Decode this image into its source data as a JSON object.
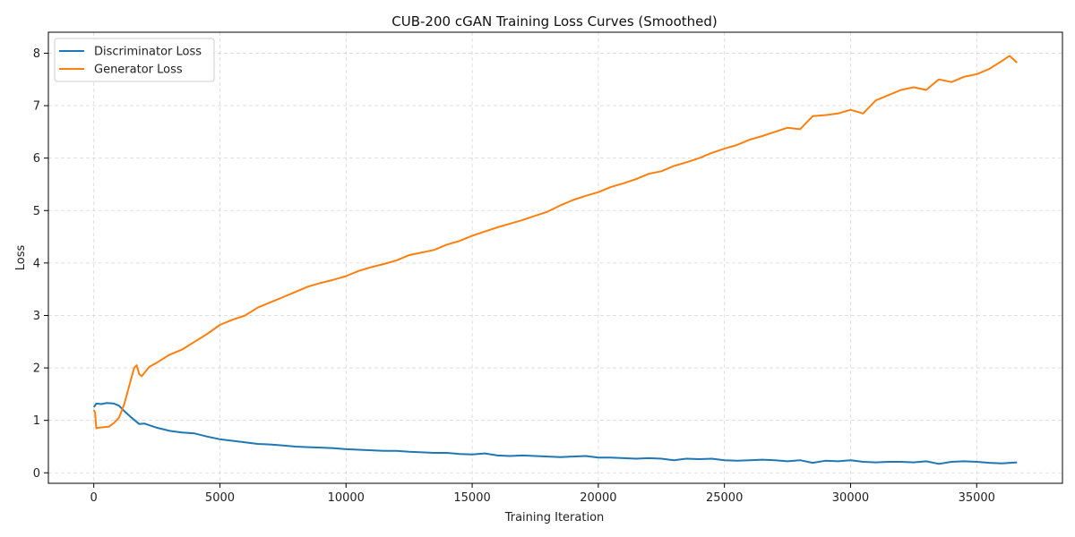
{
  "chart_data": {
    "type": "line",
    "title": "CUB-200 cGAN Training Loss Curves (Smoothed)",
    "xlabel": "Training Iteration",
    "ylabel": "Loss",
    "xlim": [
      -1800,
      38400
    ],
    "ylim": [
      -0.2,
      8.4
    ],
    "xticks": [
      0,
      5000,
      10000,
      15000,
      20000,
      25000,
      30000,
      35000
    ],
    "xtick_labels": [
      "0",
      "5000",
      "10000",
      "15000",
      "20000",
      "25000",
      "30000",
      "35000"
    ],
    "yticks": [
      0,
      1,
      2,
      3,
      4,
      5,
      6,
      7,
      8
    ],
    "ytick_labels": [
      "0",
      "1",
      "2",
      "3",
      "4",
      "5",
      "6",
      "7",
      "8"
    ],
    "grid": true,
    "legend_position": "top-left",
    "series": [
      {
        "name": "Discriminator Loss",
        "color": "#1f77b4",
        "x": [
          0,
          100,
          300,
          500,
          800,
          1000,
          1200,
          1500,
          1800,
          2000,
          2500,
          3000,
          3500,
          4000,
          4500,
          5000,
          5500,
          6000,
          6500,
          7000,
          7500,
          8000,
          8500,
          9000,
          9500,
          10000,
          10500,
          11000,
          11500,
          12000,
          12500,
          13000,
          13500,
          14000,
          14500,
          15000,
          15500,
          16000,
          16500,
          17000,
          17500,
          18000,
          18500,
          19000,
          19500,
          20000,
          20500,
          21000,
          21500,
          22000,
          22500,
          23000,
          23500,
          24000,
          24500,
          25000,
          25500,
          26000,
          26500,
          27000,
          27500,
          28000,
          28500,
          29000,
          29500,
          30000,
          30500,
          31000,
          31500,
          32000,
          32500,
          33000,
          33500,
          34000,
          34500,
          35000,
          35500,
          36000,
          36600
        ],
        "y": [
          1.25,
          1.32,
          1.31,
          1.33,
          1.32,
          1.28,
          1.18,
          1.05,
          0.93,
          0.94,
          0.86,
          0.8,
          0.77,
          0.75,
          0.69,
          0.64,
          0.61,
          0.58,
          0.55,
          0.54,
          0.52,
          0.5,
          0.49,
          0.48,
          0.47,
          0.45,
          0.44,
          0.43,
          0.42,
          0.42,
          0.4,
          0.39,
          0.38,
          0.38,
          0.36,
          0.35,
          0.37,
          0.33,
          0.32,
          0.33,
          0.32,
          0.31,
          0.3,
          0.31,
          0.32,
          0.29,
          0.29,
          0.28,
          0.27,
          0.28,
          0.27,
          0.24,
          0.27,
          0.26,
          0.27,
          0.24,
          0.23,
          0.24,
          0.25,
          0.24,
          0.22,
          0.24,
          0.19,
          0.23,
          0.22,
          0.24,
          0.21,
          0.2,
          0.21,
          0.21,
          0.2,
          0.22,
          0.17,
          0.21,
          0.22,
          0.21,
          0.19,
          0.18,
          0.2
        ]
      },
      {
        "name": "Generator Loss",
        "color": "#ff7f0e",
        "x": [
          0,
          50,
          100,
          200,
          400,
          600,
          800,
          1000,
          1200,
          1400,
          1600,
          1700,
          1800,
          1900,
          2000,
          2200,
          2500,
          3000,
          3500,
          4000,
          4500,
          5000,
          5500,
          6000,
          6500,
          7000,
          7500,
          8000,
          8500,
          9000,
          9500,
          10000,
          10500,
          11000,
          11500,
          12000,
          12500,
          13000,
          13500,
          14000,
          14500,
          15000,
          15500,
          16000,
          16500,
          17000,
          17500,
          18000,
          18500,
          19000,
          19500,
          20000,
          20500,
          21000,
          21500,
          22000,
          22500,
          23000,
          23500,
          24000,
          24500,
          25000,
          25500,
          26000,
          26500,
          27000,
          27500,
          28000,
          28500,
          29000,
          29500,
          30000,
          30500,
          31000,
          31500,
          32000,
          32500,
          33000,
          33500,
          34000,
          34500,
          35000,
          35500,
          36000,
          36300,
          36600
        ],
        "y": [
          1.2,
          1.15,
          0.85,
          0.86,
          0.87,
          0.88,
          0.95,
          1.05,
          1.3,
          1.65,
          2.0,
          2.05,
          1.88,
          1.84,
          1.9,
          2.02,
          2.1,
          2.25,
          2.35,
          2.5,
          2.65,
          2.82,
          2.92,
          3.0,
          3.15,
          3.25,
          3.35,
          3.45,
          3.55,
          3.62,
          3.68,
          3.75,
          3.85,
          3.92,
          3.98,
          4.05,
          4.15,
          4.2,
          4.25,
          4.35,
          4.42,
          4.52,
          4.6,
          4.68,
          4.75,
          4.82,
          4.9,
          4.98,
          5.1,
          5.2,
          5.28,
          5.35,
          5.45,
          5.52,
          5.6,
          5.7,
          5.75,
          5.85,
          5.92,
          6.0,
          6.1,
          6.18,
          6.25,
          6.35,
          6.42,
          6.5,
          6.58,
          6.55,
          6.8,
          6.82,
          6.85,
          6.92,
          6.85,
          7.1,
          7.2,
          7.3,
          7.35,
          7.3,
          7.5,
          7.45,
          7.55,
          7.6,
          7.7,
          7.85,
          7.95,
          7.82
        ]
      }
    ]
  }
}
